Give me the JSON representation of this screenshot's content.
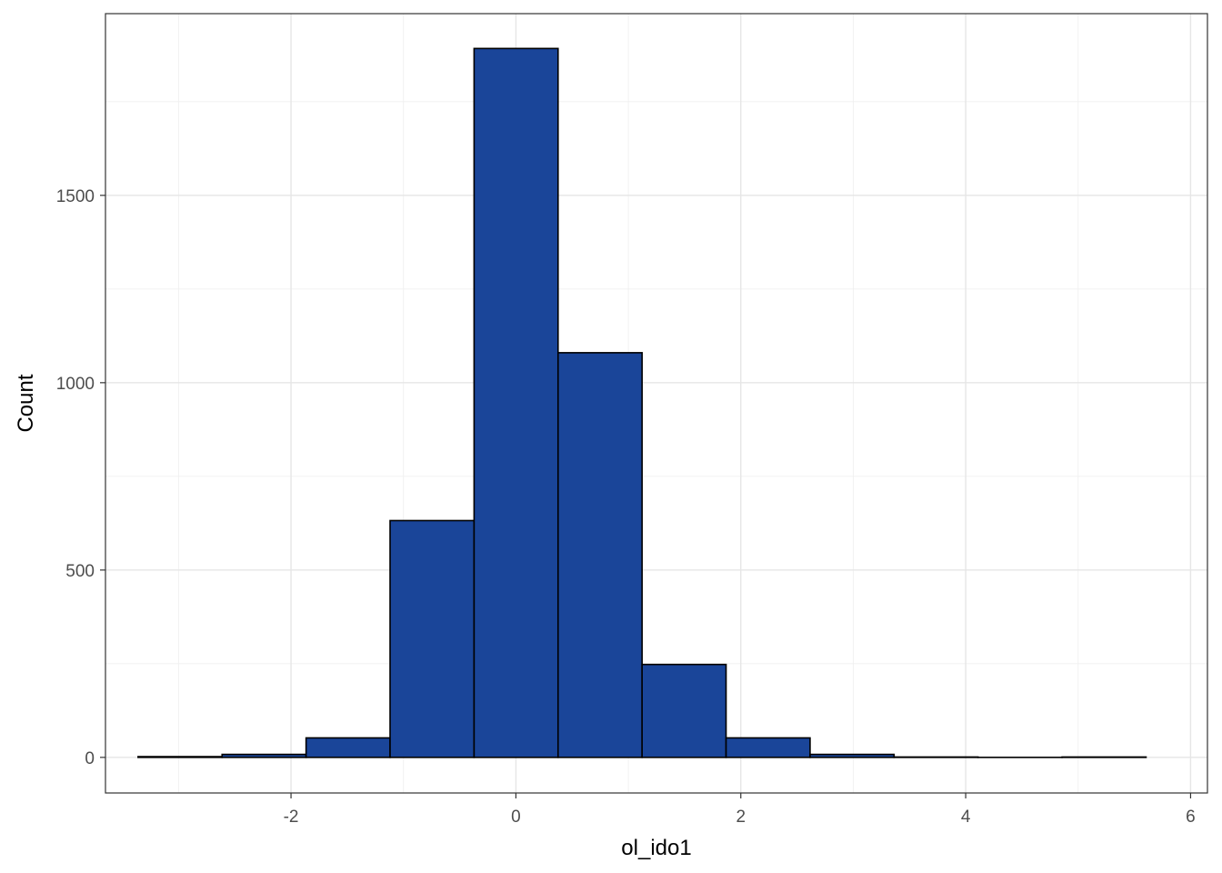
{
  "chart_data": {
    "type": "bar",
    "subtype": "histogram",
    "xlabel": "ol_ido1",
    "ylabel": "Count",
    "xlim": [
      -3.65,
      6.15
    ],
    "ylim": [
      -95,
      1985
    ],
    "x_ticks": [
      -2,
      0,
      2,
      4,
      6
    ],
    "x_tick_labels": [
      "-2",
      "0",
      "2",
      "4",
      "6"
    ],
    "y_ticks": [
      0,
      500,
      1000,
      1500
    ],
    "y_tick_labels": [
      "0",
      "500",
      "1000",
      "1500"
    ],
    "x_minor_ticks": [
      -3,
      -1,
      1,
      3,
      5
    ],
    "y_minor_ticks": [
      250,
      750,
      1250,
      1750
    ],
    "grid": true,
    "bin_width": 0.747,
    "bins": [
      {
        "x0": -3.36,
        "x1": -2.613,
        "count": 2
      },
      {
        "x0": -2.613,
        "x1": -1.866,
        "count": 8
      },
      {
        "x0": -1.866,
        "x1": -1.119,
        "count": 52
      },
      {
        "x0": -1.119,
        "x1": -0.372,
        "count": 632
      },
      {
        "x0": -0.372,
        "x1": 0.375,
        "count": 1892
      },
      {
        "x0": 0.375,
        "x1": 1.122,
        "count": 1080
      },
      {
        "x0": 1.122,
        "x1": 1.869,
        "count": 248
      },
      {
        "x0": 1.869,
        "x1": 2.616,
        "count": 52
      },
      {
        "x0": 2.616,
        "x1": 3.363,
        "count": 8
      },
      {
        "x0": 3.363,
        "x1": 4.11,
        "count": 1
      },
      {
        "x0": 4.11,
        "x1": 4.857,
        "count": 0
      },
      {
        "x0": 4.857,
        "x1": 5.604,
        "count": 1
      }
    ],
    "colors": {
      "bar_fill": "#1a4599",
      "bar_outline": "#000000",
      "grid": "#e6e6e6"
    }
  }
}
